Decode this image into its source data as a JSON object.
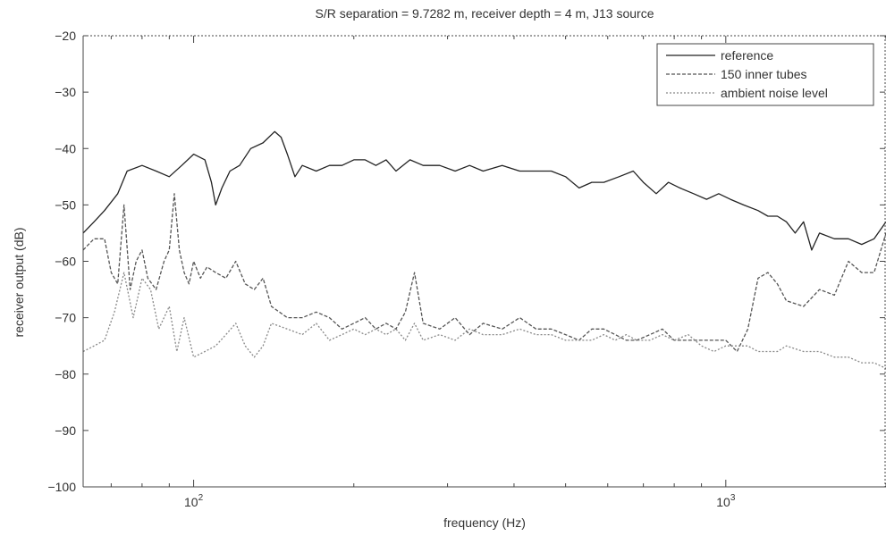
{
  "chart_data": {
    "type": "line",
    "title": "S/R separation = 9.7282 m, receiver depth = 4 m, J13 source",
    "xlabel": "frequency (Hz)",
    "ylabel": "receiver output (dB)",
    "xscale": "log",
    "xlim": [
      62,
      2000
    ],
    "ylim": [
      -100,
      -20
    ],
    "yticks": [
      -20,
      -30,
      -40,
      -50,
      -60,
      -70,
      -80,
      -90,
      -100
    ],
    "xticks": [
      {
        "value": 100,
        "base": "10",
        "exp": "2"
      },
      {
        "value": 1000,
        "base": "10",
        "exp": "3"
      }
    ],
    "grid": false,
    "legend_position": "top-right",
    "series": [
      {
        "name": "reference",
        "color": "#222222",
        "dash": "",
        "x": [
          62,
          65,
          68,
          72,
          75,
          80,
          85,
          90,
          95,
          100,
          105,
          108,
          110,
          113,
          117,
          122,
          128,
          135,
          142,
          146,
          150,
          155,
          160,
          170,
          180,
          190,
          200,
          210,
          220,
          230,
          240,
          255,
          270,
          290,
          310,
          330,
          350,
          380,
          410,
          440,
          470,
          500,
          530,
          560,
          590,
          630,
          670,
          700,
          740,
          780,
          820,
          870,
          920,
          970,
          1020,
          1080,
          1150,
          1200,
          1250,
          1300,
          1350,
          1400,
          1450,
          1500,
          1600,
          1700,
          1800,
          1900,
          2000
        ],
        "y": [
          -55,
          -53,
          -51,
          -48,
          -44,
          -43,
          -44,
          -45,
          -43,
          -41,
          -42,
          -46,
          -50,
          -47,
          -44,
          -43,
          -40,
          -39,
          -37,
          -38,
          -41,
          -45,
          -43,
          -44,
          -43,
          -43,
          -42,
          -42,
          -43,
          -42,
          -44,
          -42,
          -43,
          -43,
          -44,
          -43,
          -44,
          -43,
          -44,
          -44,
          -44,
          -45,
          -47,
          -46,
          -46,
          -45,
          -44,
          -46,
          -48,
          -46,
          -47,
          -48,
          -49,
          -48,
          -49,
          -50,
          -51,
          -52,
          -52,
          -53,
          -55,
          -53,
          -58,
          -55,
          -56,
          -56,
          -57,
          -56,
          -53
        ]
      },
      {
        "name": "150 inner tubes",
        "color": "#555555",
        "dash": "4,2",
        "x": [
          62,
          65,
          68,
          70,
          72,
          74,
          76,
          78,
          80,
          82,
          85,
          88,
          90,
          92,
          94,
          96,
          98,
          100,
          103,
          106,
          110,
          115,
          120,
          125,
          130,
          135,
          140,
          150,
          160,
          170,
          180,
          190,
          200,
          210,
          220,
          230,
          240,
          250,
          260,
          270,
          290,
          310,
          330,
          350,
          380,
          410,
          440,
          470,
          500,
          530,
          560,
          590,
          620,
          650,
          680,
          720,
          760,
          800,
          850,
          900,
          950,
          1000,
          1050,
          1100,
          1150,
          1200,
          1250,
          1300,
          1400,
          1500,
          1600,
          1700,
          1800,
          1900,
          2000
        ],
        "y": [
          -58,
          -56,
          -56,
          -62,
          -64,
          -50,
          -65,
          -60,
          -58,
          -63,
          -65,
          -60,
          -58,
          -48,
          -58,
          -62,
          -64,
          -60,
          -63,
          -61,
          -62,
          -63,
          -60,
          -64,
          -65,
          -63,
          -68,
          -70,
          -70,
          -69,
          -70,
          -72,
          -71,
          -70,
          -72,
          -71,
          -72,
          -69,
          -62,
          -71,
          -72,
          -70,
          -73,
          -71,
          -72,
          -70,
          -72,
          -72,
          -73,
          -74,
          -72,
          -72,
          -73,
          -74,
          -74,
          -73,
          -72,
          -74,
          -74,
          -74,
          -74,
          -74,
          -76,
          -72,
          -63,
          -62,
          -64,
          -67,
          -68,
          -65,
          -66,
          -60,
          -62,
          -62,
          -55
        ]
      },
      {
        "name": "ambient noise level",
        "color": "#888888",
        "dash": "2,2",
        "x": [
          62,
          65,
          68,
          71,
          74,
          77,
          80,
          83,
          86,
          90,
          93,
          96,
          100,
          105,
          110,
          115,
          120,
          125,
          130,
          135,
          140,
          150,
          160,
          170,
          180,
          190,
          200,
          210,
          220,
          230,
          240,
          250,
          260,
          270,
          290,
          310,
          330,
          350,
          380,
          410,
          440,
          470,
          500,
          530,
          560,
          590,
          620,
          650,
          680,
          720,
          760,
          800,
          850,
          900,
          950,
          1000,
          1050,
          1100,
          1150,
          1200,
          1250,
          1300,
          1400,
          1500,
          1600,
          1700,
          1800,
          1900,
          2000
        ],
        "y": [
          -76,
          -75,
          -74,
          -69,
          -62,
          -70,
          -63,
          -65,
          -72,
          -68,
          -76,
          -70,
          -77,
          -76,
          -75,
          -73,
          -71,
          -75,
          -77,
          -75,
          -71,
          -72,
          -73,
          -71,
          -74,
          -73,
          -72,
          -73,
          -72,
          -73,
          -72,
          -74,
          -71,
          -74,
          -73,
          -74,
          -72,
          -73,
          -73,
          -72,
          -73,
          -73,
          -74,
          -74,
          -74,
          -73,
          -74,
          -73,
          -74,
          -74,
          -73,
          -74,
          -73,
          -75,
          -76,
          -75,
          -75,
          -75,
          -76,
          -76,
          -76,
          -75,
          -76,
          -76,
          -77,
          -77,
          -78,
          -78,
          -79
        ]
      }
    ]
  }
}
